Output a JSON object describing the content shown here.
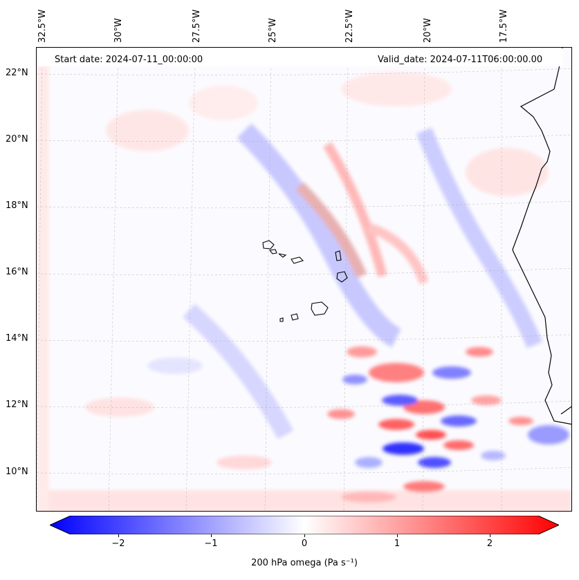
{
  "header": {
    "start_date": "Start date: 2024-07-11_00:00:00",
    "valid_date": "Valid_date: 2024-07-11T06:00:00.00"
  },
  "axes": {
    "lon_labels": [
      "32.5°W",
      "30°W",
      "27.5°W",
      "25°W",
      "22.5°W",
      "20°W",
      "17.5°W"
    ],
    "lat_labels": [
      "22°N",
      "20°N",
      "18°N",
      "16°N",
      "14°N",
      "12°N",
      "10°N"
    ]
  },
  "colorbar": {
    "ticks": [
      "−2",
      "−1",
      "0",
      "1",
      "2"
    ],
    "label": "200 hPa omega (Pa s⁻¹)",
    "min_color": "#0000ff",
    "zero_color": "#ffffff",
    "max_color": "#ff0000"
  },
  "colors": {
    "ascent": "#1a1aff",
    "descent": "#ff1a1a",
    "coastline": "#000000",
    "gridline": "#aaaaaa"
  }
}
